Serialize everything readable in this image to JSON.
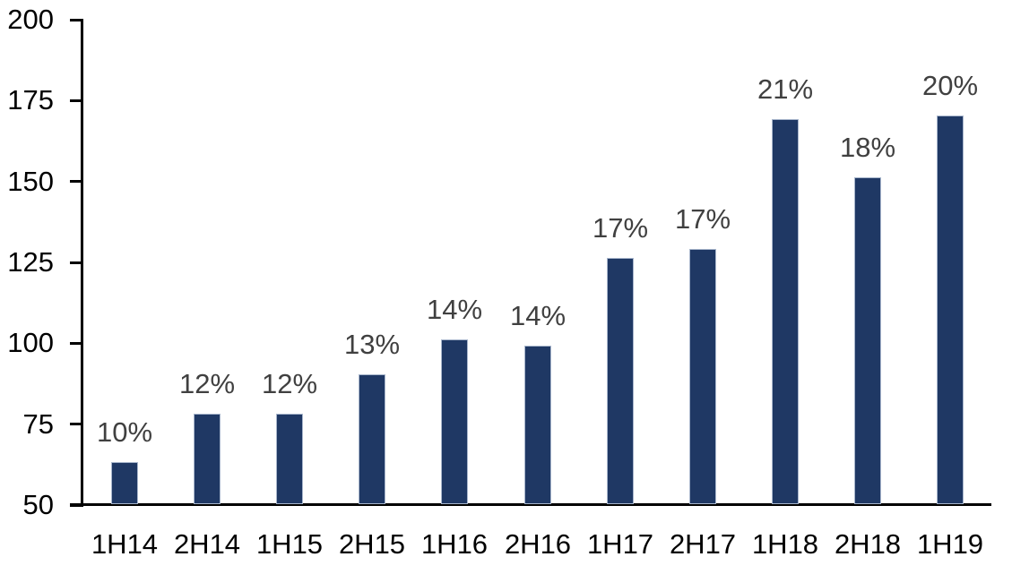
{
  "chart_data": {
    "type": "bar",
    "title": "",
    "xlabel": "",
    "ylabel": "",
    "categories": [
      "1H14",
      "2H14",
      "1H15",
      "2H15",
      "1H16",
      "2H16",
      "1H17",
      "2H17",
      "1H18",
      "2H18",
      "1H19"
    ],
    "values": [
      63,
      78,
      78,
      90,
      101,
      99,
      126,
      129,
      169,
      151,
      170
    ],
    "data_labels": [
      "10%",
      "12%",
      "12%",
      "13%",
      "14%",
      "14%",
      "17%",
      "17%",
      "21%",
      "18%",
      "20%"
    ],
    "ylim": [
      50,
      200
    ],
    "yticks": [
      50,
      75,
      100,
      125,
      150,
      175,
      200
    ],
    "grid": false,
    "legend": "none",
    "colors": {
      "bar_fill": "#1f3864",
      "bar_border": "#a8b6cc",
      "data_label_text": "#404040",
      "axis_text": "#000000",
      "axis_line": "#000000",
      "background": "#ffffff"
    }
  }
}
